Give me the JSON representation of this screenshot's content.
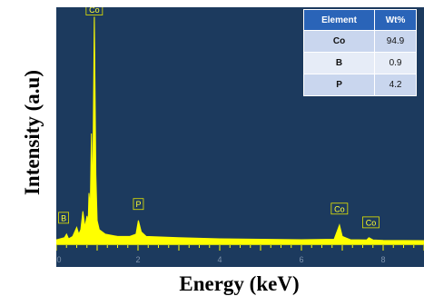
{
  "axes": {
    "xlabel": "Energy (keV)",
    "ylabel": "Intensity (a.u)"
  },
  "chart_data": {
    "type": "line",
    "xlabel": "Energy (keV)",
    "ylabel": "Intensity (a.u)",
    "xlim": [
      0,
      9
    ],
    "ylim": [
      0,
      100
    ],
    "x_ticks": [
      0,
      2,
      4,
      6,
      8
    ],
    "grid": false,
    "colors": {
      "background": "#1c3a5e",
      "trace": "#ffff00",
      "tick_text": "#7f93ad"
    },
    "series": [
      {
        "values": [
          [
            0.0,
            1.5
          ],
          [
            0.2,
            2.5
          ],
          [
            0.25,
            4
          ],
          [
            0.3,
            2
          ],
          [
            0.4,
            3
          ],
          [
            0.5,
            7
          ],
          [
            0.55,
            4
          ],
          [
            0.6,
            6
          ],
          [
            0.65,
            14
          ],
          [
            0.7,
            7
          ],
          [
            0.75,
            12
          ],
          [
            0.78,
            9
          ],
          [
            0.8,
            22
          ],
          [
            0.83,
            16
          ],
          [
            0.86,
            48
          ],
          [
            0.89,
            20
          ],
          [
            0.93,
            99
          ],
          [
            0.97,
            30
          ],
          [
            1.0,
            10
          ],
          [
            1.05,
            6
          ],
          [
            1.2,
            4
          ],
          [
            1.5,
            3
          ],
          [
            1.8,
            3
          ],
          [
            1.95,
            4
          ],
          [
            2.01,
            10
          ],
          [
            2.08,
            5
          ],
          [
            2.2,
            3
          ],
          [
            3.0,
            2.5
          ],
          [
            4.0,
            2
          ],
          [
            5.0,
            1.8
          ],
          [
            6.0,
            1.6
          ],
          [
            6.8,
            1.8
          ],
          [
            6.93,
            8
          ],
          [
            7.0,
            3
          ],
          [
            7.2,
            1.6
          ],
          [
            7.6,
            1.5
          ],
          [
            7.65,
            2.5
          ],
          [
            7.75,
            1.5
          ],
          [
            8.0,
            1.3
          ],
          [
            9.0,
            1.2
          ]
        ]
      }
    ],
    "annotations": [
      {
        "text": "Co",
        "x": 0.93,
        "y": 99
      },
      {
        "text": "B",
        "x": 0.18,
        "y": 8
      },
      {
        "text": "P",
        "x": 2.01,
        "y": 14
      },
      {
        "text": "Co",
        "x": 6.93,
        "y": 12
      },
      {
        "text": "Co",
        "x": 7.7,
        "y": 6
      }
    ],
    "table": {
      "headers": [
        "Element",
        "Wt%"
      ],
      "rows": [
        [
          "Co",
          "94.9"
        ],
        [
          "B",
          "0.9"
        ],
        [
          "P",
          "4.2"
        ]
      ]
    }
  }
}
